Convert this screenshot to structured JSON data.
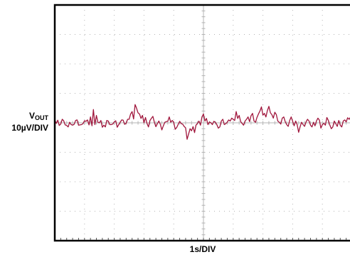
{
  "chart_data": {
    "type": "line",
    "title": "",
    "ylabel": {
      "symbol": "V",
      "subscript": "OUT",
      "scale": "10µV/DIV"
    },
    "xlabel": "1s/DIV",
    "x_divisions": 10,
    "y_divisions": 8,
    "grid": true,
    "ylim": [
      -40,
      40
    ],
    "xlim": [
      0,
      10
    ],
    "series": [
      {
        "color": "#a0163c",
        "points": [
          [
            0.0,
            1.0
          ],
          [
            0.05,
            -0.2
          ],
          [
            0.1,
            0.9
          ],
          [
            0.15,
            -0.9
          ],
          [
            0.2,
            -0.4
          ],
          [
            0.25,
            1.2
          ],
          [
            0.3,
            0.7
          ],
          [
            0.35,
            -0.7
          ],
          [
            0.4,
            -0.9
          ],
          [
            0.45,
            -1.4
          ],
          [
            0.5,
            0.2
          ],
          [
            0.55,
            -0.6
          ],
          [
            0.6,
            -0.8
          ],
          [
            0.65,
            -0.5
          ],
          [
            0.7,
            0.8
          ],
          [
            0.75,
            1.0
          ],
          [
            0.8,
            -0.8
          ],
          [
            0.85,
            -0.7
          ],
          [
            0.9,
            -0.6
          ],
          [
            0.95,
            -0.3
          ],
          [
            1.0,
            0.7
          ],
          [
            1.05,
            0.5
          ],
          [
            1.1,
            1.0
          ],
          [
            1.15,
            -0.7
          ],
          [
            1.2,
            2.0
          ],
          [
            1.25,
            -1.0
          ],
          [
            1.3,
            4.5
          ],
          [
            1.35,
            -0.6
          ],
          [
            1.4,
            2.5
          ],
          [
            1.45,
            0.2
          ],
          [
            1.5,
            0.0
          ],
          [
            1.55,
            0.8
          ],
          [
            1.6,
            -1.5
          ],
          [
            1.65,
            -0.8
          ],
          [
            1.7,
            -1.4
          ],
          [
            1.75,
            0.8
          ],
          [
            1.8,
            0.6
          ],
          [
            1.85,
            -0.6
          ],
          [
            1.9,
            -0.6
          ],
          [
            1.95,
            -0.4
          ],
          [
            2.0,
            0.3
          ],
          [
            2.05,
            0.7
          ],
          [
            2.1,
            -1.5
          ],
          [
            2.15,
            -0.6
          ],
          [
            2.2,
            0.2
          ],
          [
            2.25,
            1.0
          ],
          [
            2.3,
            0.9
          ],
          [
            2.35,
            -0.5
          ],
          [
            2.4,
            -0.2
          ],
          [
            2.45,
            1.2
          ],
          [
            2.5,
            1.2
          ],
          [
            2.55,
            3.0
          ],
          [
            2.6,
            3.8
          ],
          [
            2.65,
            1.3
          ],
          [
            2.7,
            6.2
          ],
          [
            2.75,
            5.0
          ],
          [
            2.8,
            3.4
          ],
          [
            2.85,
            3.0
          ],
          [
            2.9,
            1.5
          ],
          [
            2.95,
            2.5
          ],
          [
            3.0,
            0.0
          ],
          [
            3.05,
            1.8
          ],
          [
            3.1,
            -0.2
          ],
          [
            3.15,
            -1.4
          ],
          [
            3.2,
            0.8
          ],
          [
            3.25,
            1.5
          ],
          [
            3.3,
            2.2
          ],
          [
            3.35,
            0.2
          ],
          [
            3.4,
            -1.3
          ],
          [
            3.45,
            -0.3
          ],
          [
            3.5,
            0.6
          ],
          [
            3.55,
            -0.5
          ],
          [
            3.6,
            -2.4
          ],
          [
            3.65,
            -1.0
          ],
          [
            3.7,
            0.2
          ],
          [
            3.75,
            0.4
          ],
          [
            3.8,
            0.5
          ],
          [
            3.85,
            2.0
          ],
          [
            3.9,
            0.2
          ],
          [
            3.95,
            0.8
          ],
          [
            4.0,
            0.2
          ],
          [
            4.05,
            -2.2
          ],
          [
            4.1,
            -1.6
          ],
          [
            4.15,
            -0.5
          ],
          [
            4.2,
            0.5
          ],
          [
            4.25,
            -0.3
          ],
          [
            4.3,
            -0.4
          ],
          [
            4.35,
            -1.2
          ],
          [
            4.4,
            -1.7
          ],
          [
            4.45,
            -5.6
          ],
          [
            4.5,
            -3.8
          ],
          [
            4.55,
            -2.0
          ],
          [
            4.6,
            -2.7
          ],
          [
            4.65,
            -1.3
          ],
          [
            4.7,
            -3.3
          ],
          [
            4.75,
            -0.8
          ],
          [
            4.8,
            -0.2
          ],
          [
            4.85,
            0.6
          ],
          [
            4.9,
            -0.8
          ],
          [
            4.95,
            2.0
          ],
          [
            5.0,
            3.0
          ],
          [
            5.05,
            0.6
          ],
          [
            5.1,
            1.5
          ],
          [
            5.15,
            -0.6
          ],
          [
            5.2,
            0.3
          ],
          [
            5.25,
            0.0
          ],
          [
            5.3,
            -0.6
          ],
          [
            5.35,
            0.5
          ],
          [
            5.4,
            0.2
          ],
          [
            5.45,
            -0.6
          ],
          [
            5.5,
            -1.8
          ],
          [
            5.55,
            -1.4
          ],
          [
            5.6,
            0.6
          ],
          [
            5.65,
            1.2
          ],
          [
            5.7,
            -0.6
          ],
          [
            5.75,
            -0.3
          ],
          [
            5.8,
            0.2
          ],
          [
            5.85,
            1.0
          ],
          [
            5.9,
            0.6
          ],
          [
            5.95,
            1.6
          ],
          [
            6.0,
            1.2
          ],
          [
            6.05,
            0.8
          ],
          [
            6.1,
            3.8
          ],
          [
            6.15,
            1.5
          ],
          [
            6.2,
            2.5
          ],
          [
            6.25,
            0.4
          ],
          [
            6.3,
            -0.2
          ],
          [
            6.35,
            -0.8
          ],
          [
            6.4,
            0.6
          ],
          [
            6.45,
            1.2
          ],
          [
            6.5,
            2.0
          ],
          [
            6.55,
            0.4
          ],
          [
            6.6,
            2.4
          ],
          [
            6.65,
            3.2
          ],
          [
            6.7,
            0.6
          ],
          [
            6.75,
            0.2
          ],
          [
            6.8,
            1.8
          ],
          [
            6.85,
            3.0
          ],
          [
            6.9,
            4.0
          ],
          [
            6.95,
            5.4
          ],
          [
            7.0,
            2.6
          ],
          [
            7.05,
            3.2
          ],
          [
            7.1,
            2.0
          ],
          [
            7.15,
            4.2
          ],
          [
            7.2,
            5.6
          ],
          [
            7.25,
            3.4
          ],
          [
            7.3,
            2.8
          ],
          [
            7.35,
            1.6
          ],
          [
            7.4,
            3.6
          ],
          [
            7.45,
            2.8
          ],
          [
            7.5,
            0.6
          ],
          [
            7.55,
            0.2
          ],
          [
            7.6,
            -0.4
          ],
          [
            7.65,
            1.6
          ],
          [
            7.7,
            2.0
          ],
          [
            7.75,
            0.4
          ],
          [
            7.8,
            -0.6
          ],
          [
            7.85,
            -1.2
          ],
          [
            7.9,
            0.8
          ],
          [
            7.95,
            2.0
          ],
          [
            8.0,
            0.5
          ],
          [
            8.05,
            -1.0
          ],
          [
            8.1,
            0.6
          ],
          [
            8.15,
            -0.6
          ],
          [
            8.2,
            -3.2
          ],
          [
            8.25,
            -1.4
          ],
          [
            8.3,
            0.2
          ],
          [
            8.35,
            -0.6
          ],
          [
            8.4,
            -1.2
          ],
          [
            8.45,
            0.3
          ],
          [
            8.5,
            1.2
          ],
          [
            8.55,
            0.6
          ],
          [
            8.6,
            -0.8
          ],
          [
            8.65,
            -1.4
          ],
          [
            8.7,
            0.2
          ],
          [
            8.75,
            -1.0
          ],
          [
            8.8,
            0.6
          ],
          [
            8.85,
            1.6
          ],
          [
            8.9,
            0.9
          ],
          [
            8.95,
            -1.8
          ],
          [
            9.0,
            -0.6
          ],
          [
            9.05,
            -0.2
          ],
          [
            9.1,
            -0.8
          ],
          [
            9.15,
            1.8
          ],
          [
            9.2,
            0.8
          ],
          [
            9.25,
            -0.8
          ],
          [
            9.3,
            -2.0
          ],
          [
            9.35,
            -1.4
          ],
          [
            9.4,
            0.6
          ],
          [
            9.45,
            -0.3
          ],
          [
            9.5,
            -1.2
          ],
          [
            9.55,
            0.8
          ],
          [
            9.6,
            -0.8
          ],
          [
            9.65,
            -1.4
          ],
          [
            9.7,
            0.6
          ],
          [
            9.75,
            1.0
          ],
          [
            9.8,
            0.3
          ],
          [
            9.85,
            1.7
          ],
          [
            9.9,
            1.2
          ],
          [
            9.95,
            2.0
          ],
          [
            10.0,
            1.6
          ]
        ]
      }
    ]
  },
  "colors": {
    "frame": "#000000",
    "grid": "#b4b4b4",
    "trace": "#a0163c"
  }
}
